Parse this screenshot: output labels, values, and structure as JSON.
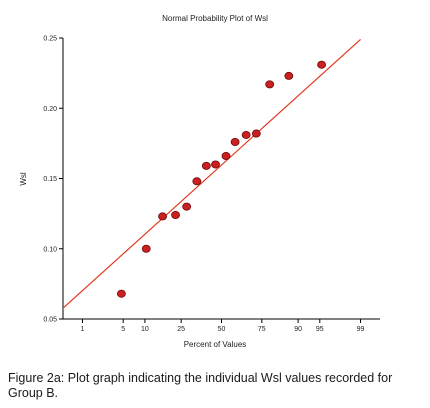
{
  "chart_data": {
    "type": "scatter",
    "title": "Normal Probability Plot of Wsl",
    "xlabel": "Percent of Values",
    "ylabel": "Wsl",
    "x_scale": "normal-probability",
    "xticks": [
      1,
      5,
      10,
      25,
      50,
      75,
      90,
      95,
      99
    ],
    "ylim": [
      0.05,
      0.25
    ],
    "yticks": [
      "0.05",
      "0.10",
      "0.15",
      "0.20",
      "0.25"
    ],
    "grid": false,
    "points": [
      {
        "x": 4.7,
        "y": 0.068
      },
      {
        "x": 10.4,
        "y": 0.1
      },
      {
        "x": 16.2,
        "y": 0.123
      },
      {
        "x": 22.1,
        "y": 0.124
      },
      {
        "x": 28.0,
        "y": 0.13
      },
      {
        "x": 34.0,
        "y": 0.148
      },
      {
        "x": 40.0,
        "y": 0.159
      },
      {
        "x": 46.0,
        "y": 0.16
      },
      {
        "x": 53.0,
        "y": 0.166
      },
      {
        "x": 59.0,
        "y": 0.176
      },
      {
        "x": 66.0,
        "y": 0.181
      },
      {
        "x": 72.0,
        "y": 0.182
      },
      {
        "x": 79.0,
        "y": 0.217
      },
      {
        "x": 87.0,
        "y": 0.223
      },
      {
        "x": 95.3,
        "y": 0.231
      }
    ],
    "fit_line": {
      "x": [
        0.3,
        99.0
      ],
      "y": [
        0.054,
        0.249
      ]
    },
    "colors": {
      "point_fill": "#cc1f1f",
      "point_stroke": "#6a0a0a",
      "line": "#e03a1e",
      "axis": "#000000"
    }
  },
  "caption": "Figure 2a: Plot graph indicating the individual Wsl values recorded for Group B."
}
